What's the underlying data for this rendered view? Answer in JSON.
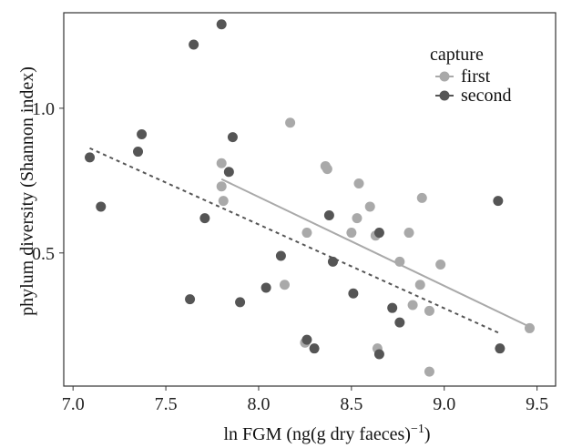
{
  "chart_data": {
    "type": "scatter",
    "xlabel": "ln FGM (ng(g dry faeces)",
    "xlabel_sup": "−1",
    "xlabel_close": ")",
    "ylabel": "phylum diversity (Shannon index)",
    "xlim": [
      6.95,
      9.6
    ],
    "ylim": [
      0.04,
      1.33
    ],
    "xticks": [
      7.0,
      7.5,
      8.0,
      8.5,
      9.0,
      9.5
    ],
    "xtick_labels": [
      "7.0",
      "7.5",
      "8.0",
      "8.5",
      "9.0",
      "9.5"
    ],
    "yticks": [
      0.5,
      1.0
    ],
    "ytick_labels": [
      "0.5",
      "1.0"
    ],
    "grid": false,
    "legend": {
      "title": "capture",
      "position": "top-right"
    },
    "series": [
      {
        "name": "first",
        "color": "#a9a9a9",
        "trend": {
          "style": "solid",
          "x": [
            7.8,
            9.46
          ],
          "y": [
            0.755,
            0.245
          ]
        },
        "points": [
          [
            7.8,
            0.81
          ],
          [
            7.8,
            0.73
          ],
          [
            7.81,
            0.68
          ],
          [
            8.17,
            0.95
          ],
          [
            8.14,
            0.39
          ],
          [
            8.26,
            0.57
          ],
          [
            8.25,
            0.19
          ],
          [
            8.36,
            0.8
          ],
          [
            8.37,
            0.79
          ],
          [
            8.5,
            0.57
          ],
          [
            8.53,
            0.62
          ],
          [
            8.54,
            0.74
          ],
          [
            8.6,
            0.66
          ],
          [
            8.63,
            0.56
          ],
          [
            8.64,
            0.17
          ],
          [
            8.76,
            0.47
          ],
          [
            8.81,
            0.57
          ],
          [
            8.83,
            0.32
          ],
          [
            8.87,
            0.39
          ],
          [
            8.88,
            0.69
          ],
          [
            8.92,
            0.3
          ],
          [
            8.92,
            0.09
          ],
          [
            8.98,
            0.46
          ],
          [
            9.46,
            0.24
          ]
        ]
      },
      {
        "name": "second",
        "color": "#555555",
        "trend": {
          "style": "dashed",
          "x": [
            7.09,
            9.3
          ],
          "y": [
            0.862,
            0.222
          ]
        },
        "points": [
          [
            7.09,
            0.83
          ],
          [
            7.15,
            0.66
          ],
          [
            7.35,
            0.85
          ],
          [
            7.37,
            0.91
          ],
          [
            7.63,
            0.34
          ],
          [
            7.65,
            1.22
          ],
          [
            7.71,
            0.62
          ],
          [
            7.8,
            1.29
          ],
          [
            7.84,
            0.78
          ],
          [
            7.86,
            0.9
          ],
          [
            7.9,
            0.33
          ],
          [
            8.04,
            0.38
          ],
          [
            8.12,
            0.49
          ],
          [
            8.26,
            0.2
          ],
          [
            8.3,
            0.17
          ],
          [
            8.38,
            0.63
          ],
          [
            8.4,
            0.47
          ],
          [
            8.51,
            0.36
          ],
          [
            8.65,
            0.57
          ],
          [
            8.65,
            0.15
          ],
          [
            8.72,
            0.31
          ],
          [
            8.76,
            0.26
          ],
          [
            9.29,
            0.68
          ],
          [
            9.3,
            0.17
          ]
        ]
      }
    ]
  }
}
